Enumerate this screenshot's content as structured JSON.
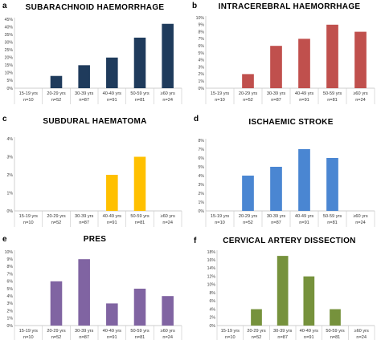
{
  "chart_data": [
    {
      "type": "bar",
      "letter": "a",
      "title": "SUBARACHNOID HAEMORRHAGE",
      "categories": [
        "15-19 yrs",
        "20-29 yrs",
        "30-39 yrs",
        "40-49 yrs",
        "50-59 yrs",
        "≥60 yrs"
      ],
      "category_n": [
        "n=10",
        "n=52",
        "n=87",
        "n=91",
        "n=81",
        "n=24"
      ],
      "values": [
        0,
        8,
        15,
        20,
        33,
        42
      ],
      "ylim": [
        0,
        45
      ],
      "yticks": [
        0,
        5,
        10,
        15,
        20,
        25,
        30,
        35,
        40,
        45
      ],
      "ytick_labels": [
        "0%",
        "5%",
        "10%",
        "15%",
        "20%",
        "25%",
        "30%",
        "35%",
        "40%",
        "45%"
      ],
      "color": "#1f3b5c"
    },
    {
      "type": "bar",
      "letter": "b",
      "title": "INTRACEREBRAL HAEMORRHAGE",
      "categories": [
        "15-19 yrs",
        "20-29 yrs",
        "30-39 yrs",
        "40-49 yrs",
        "50-59 yrs",
        "≥60 yrs"
      ],
      "category_n": [
        "n=10",
        "n=52",
        "n=87",
        "n=91",
        "n=81",
        "n=24"
      ],
      "values": [
        0,
        2,
        6,
        7,
        9,
        8
      ],
      "ylim": [
        0,
        10
      ],
      "yticks": [
        0,
        1,
        2,
        3,
        4,
        5,
        6,
        7,
        8,
        9,
        10
      ],
      "ytick_labels": [
        "0%",
        "1%",
        "2%",
        "3%",
        "4%",
        "5%",
        "6%",
        "7%",
        "8%",
        "9%",
        "10%"
      ],
      "color": "#c0504d"
    },
    {
      "type": "bar",
      "letter": "c",
      "title": "SUBDURAL HAEMATOMA",
      "categories": [
        "15-19 yrs",
        "20-29 yrs",
        "30-39 yrs",
        "40-49 yrs",
        "50-59 yrs",
        "≥60 yrs"
      ],
      "category_n": [
        "n=10",
        "n=52",
        "n=87",
        "n=91",
        "n=81",
        "n=24"
      ],
      "values": [
        0,
        0,
        0,
        2,
        3,
        0
      ],
      "ylim": [
        0,
        4
      ],
      "yticks": [
        0,
        1,
        2,
        3,
        4
      ],
      "ytick_labels": [
        "0%",
        "1%",
        "2%",
        "3%",
        "4%"
      ],
      "color": "#ffc000"
    },
    {
      "type": "bar",
      "letter": "d",
      "title": "ISCHAEMIC STROKE",
      "categories": [
        "15-19 yrs",
        "20-29 yrs",
        "30-39 yrs",
        "40-49 yrs",
        "50-59 yrs",
        "≥60 yrs"
      ],
      "category_n": [
        "n=10",
        "n=52",
        "n=87",
        "n=91",
        "n=81",
        "n=24"
      ],
      "values": [
        0,
        4,
        5,
        7,
        6,
        0
      ],
      "ylim": [
        0,
        8
      ],
      "yticks": [
        0,
        1,
        2,
        3,
        4,
        5,
        6,
        7,
        8
      ],
      "ytick_labels": [
        "0%",
        "1%",
        "2%",
        "3%",
        "4%",
        "5%",
        "6%",
        "7%",
        "8%"
      ],
      "color": "#4a86d2"
    },
    {
      "type": "bar",
      "letter": "e",
      "title": "PRES",
      "categories": [
        "15-19 yrs",
        "20-29 yrs",
        "30-39 yrs",
        "40-49 yrs",
        "50-59 yrs",
        "≥60 yrs"
      ],
      "category_n": [
        "n=10",
        "n=52",
        "n=87",
        "n=91",
        "n=81",
        "n=24"
      ],
      "values": [
        0,
        6,
        9,
        3,
        5,
        4
      ],
      "ylim": [
        0,
        10
      ],
      "yticks": [
        0,
        1,
        2,
        3,
        4,
        5,
        6,
        7,
        8,
        9,
        10
      ],
      "ytick_labels": [
        "0%",
        "1%",
        "2%",
        "3%",
        "4%",
        "5%",
        "6%",
        "7%",
        "8%",
        "9%",
        "10%"
      ],
      "color": "#8064a2"
    },
    {
      "type": "bar",
      "letter": "f",
      "title": "CERVICAL ARTERY DISSECTION",
      "categories": [
        "15-19 yrs",
        "20-29 yrs",
        "30-39 yrs",
        "40-49 yrs",
        "50-59 yrs",
        "≥60 yrs"
      ],
      "category_n": [
        "n=10",
        "n=52",
        "n=87",
        "n=91",
        "n=81",
        "n=24"
      ],
      "values": [
        0,
        4,
        17,
        12,
        4,
        0
      ],
      "ylim": [
        0,
        18
      ],
      "yticks": [
        0,
        2,
        4,
        6,
        8,
        10,
        12,
        14,
        16,
        18
      ],
      "ytick_labels": [
        "0%",
        "2%",
        "4%",
        "6%",
        "8%",
        "10%",
        "12%",
        "14%",
        "16%",
        "18%"
      ],
      "color": "#76923c"
    }
  ]
}
